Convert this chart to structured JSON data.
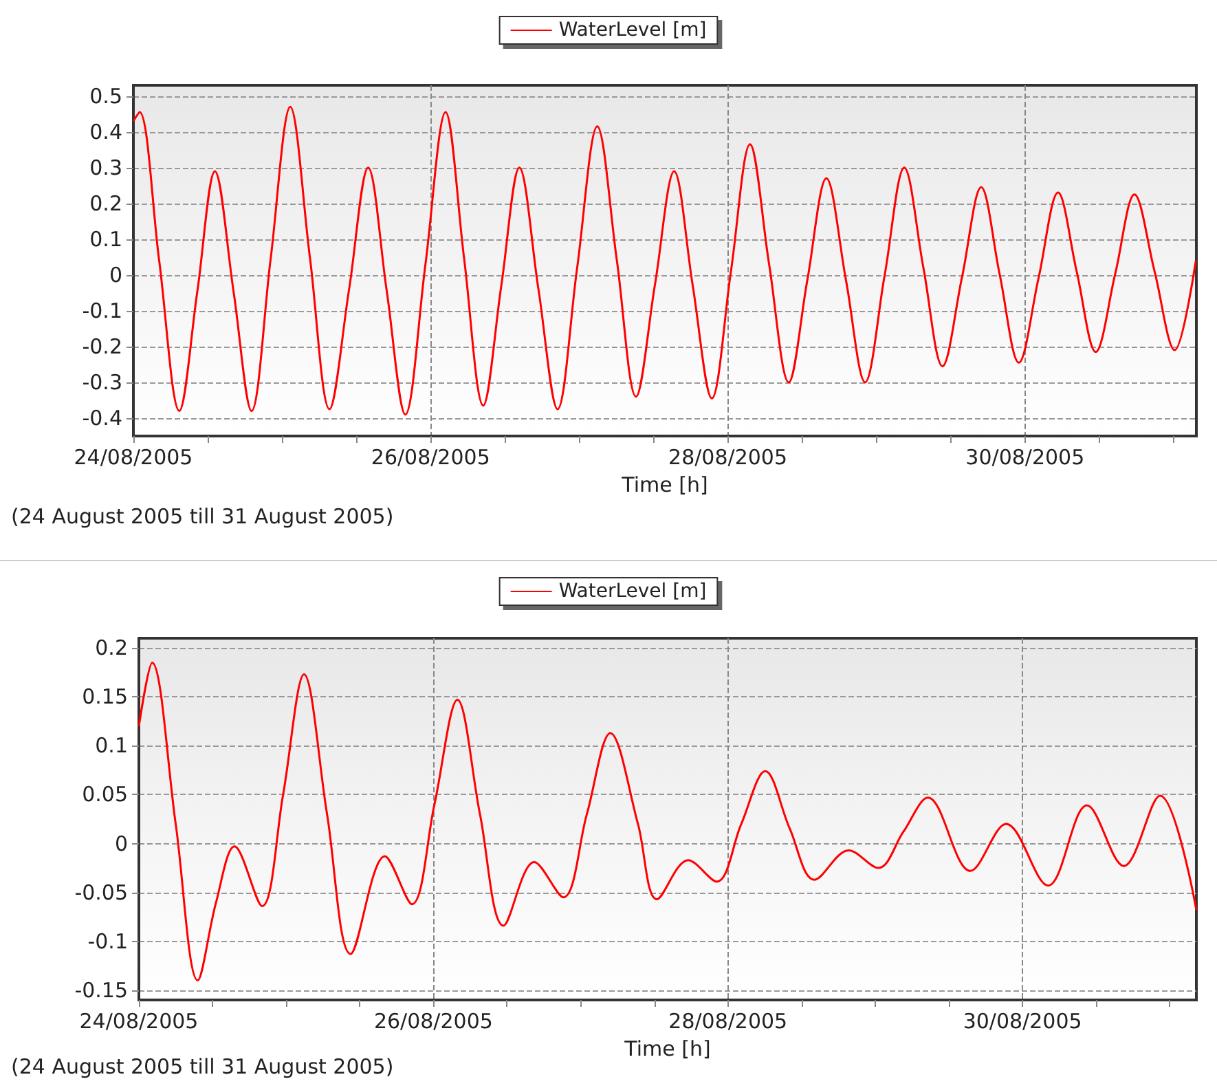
{
  "chart_data": [
    {
      "type": "line",
      "xlabel": "Time [h]",
      "annotations": [
        "(24 August 2005 till 31 August 2005)"
      ],
      "legend": "top",
      "grid": true,
      "marker": "none",
      "line_style": "solid",
      "xlim": [
        "2005-08-24T00:00",
        "2005-08-31T03:40"
      ],
      "xticks": [
        {
          "value": "2005-08-24T00:00",
          "label": "24/08/2005"
        },
        {
          "value": "2005-08-24T12:00",
          "label": null
        },
        {
          "value": "2005-08-25T00:00",
          "label": null
        },
        {
          "value": "2005-08-25T12:00",
          "label": null
        },
        {
          "value": "2005-08-26T00:00",
          "label": "26/08/2005"
        },
        {
          "value": "2005-08-26T12:00",
          "label": null
        },
        {
          "value": "2005-08-27T00:00",
          "label": null
        },
        {
          "value": "2005-08-27T12:00",
          "label": null
        },
        {
          "value": "2005-08-28T00:00",
          "label": "28/08/2005"
        },
        {
          "value": "2005-08-28T12:00",
          "label": null
        },
        {
          "value": "2005-08-29T00:00",
          "label": null
        },
        {
          "value": "2005-08-29T12:00",
          "label": null
        },
        {
          "value": "2005-08-30T00:00",
          "label": "30/08/2005"
        },
        {
          "value": "2005-08-30T12:00",
          "label": null
        },
        {
          "value": "2005-08-31T00:00",
          "label": null
        }
      ],
      "ylim": [
        -0.45,
        0.53
      ],
      "yticks": [
        -0.4,
        -0.3,
        -0.2,
        -0.1,
        0,
        0.1,
        0.2,
        0.3,
        0.4,
        0.5
      ],
      "series": [
        {
          "name": "WaterLevel [m]",
          "color": "#ff0000",
          "x": [
            "2005-08-24T00:00",
            "2005-08-24T01:00",
            "2005-08-24T04:10",
            "2005-08-24T07:25",
            "2005-08-24T10:20",
            "2005-08-24T13:10",
            "2005-08-24T16:10",
            "2005-08-24T19:05",
            "2005-08-24T22:10",
            "2005-08-25T01:20",
            "2005-08-25T04:30",
            "2005-08-25T07:40",
            "2005-08-25T10:50",
            "2005-08-25T13:55",
            "2005-08-25T16:55",
            "2005-08-25T19:55",
            "2005-08-25T23:10",
            "2005-08-26T02:25",
            "2005-08-26T05:25",
            "2005-08-26T08:30",
            "2005-08-26T11:25",
            "2005-08-26T14:20",
            "2005-08-26T17:25",
            "2005-08-26T20:30",
            "2005-08-26T23:40",
            "2005-08-27T02:55",
            "2005-08-27T06:05",
            "2005-08-27T09:10",
            "2005-08-27T12:15",
            "2005-08-27T15:20",
            "2005-08-27T18:20",
            "2005-08-27T21:25",
            "2005-08-28T00:30",
            "2005-08-28T03:35",
            "2005-08-28T06:40",
            "2005-08-28T09:50",
            "2005-08-28T12:50",
            "2005-08-28T15:55",
            "2005-08-28T19:05",
            "2005-08-28T22:10",
            "2005-08-29T01:20",
            "2005-08-29T04:30",
            "2005-08-29T07:35",
            "2005-08-29T10:40",
            "2005-08-29T13:50",
            "2005-08-29T16:55",
            "2005-08-29T19:55",
            "2005-08-29T23:00",
            "2005-08-30T02:10",
            "2005-08-30T05:20",
            "2005-08-30T08:20",
            "2005-08-30T11:25",
            "2005-08-30T14:35",
            "2005-08-30T17:40",
            "2005-08-30T20:55",
            "2005-08-31T00:10",
            "2005-08-31T03:35"
          ],
          "values": [
            0.43,
            0.455,
            0.04,
            -0.38,
            -0.045,
            0.29,
            -0.045,
            -0.38,
            0.045,
            0.47,
            0.05,
            -0.375,
            -0.04,
            0.3,
            -0.045,
            -0.39,
            0.03,
            0.455,
            0.045,
            -0.365,
            -0.03,
            0.3,
            -0.04,
            -0.375,
            0.02,
            0.415,
            0.04,
            -0.34,
            -0.025,
            0.29,
            -0.03,
            -0.345,
            0.01,
            0.365,
            0.03,
            -0.3,
            -0.015,
            0.27,
            -0.015,
            -0.3,
            0,
            0.3,
            0.02,
            -0.255,
            -0.005,
            0.245,
            0,
            -0.245,
            -0.01,
            0.23,
            0.01,
            -0.215,
            0.005,
            0.225,
            0.01,
            -0.21,
            0.04
          ]
        }
      ]
    },
    {
      "type": "line",
      "xlabel": "Time [h]",
      "annotations": [
        "(24 August 2005 till 31 August 2005)"
      ],
      "legend": "top",
      "grid": true,
      "marker": "none",
      "line_style": "solid",
      "xlim": [
        "2005-08-24T00:00",
        "2005-08-31T04:20"
      ],
      "xticks": [
        {
          "value": "2005-08-24T00:00",
          "label": "24/08/2005"
        },
        {
          "value": "2005-08-24T12:00",
          "label": null
        },
        {
          "value": "2005-08-25T00:00",
          "label": null
        },
        {
          "value": "2005-08-25T12:00",
          "label": null
        },
        {
          "value": "2005-08-26T00:00",
          "label": "26/08/2005"
        },
        {
          "value": "2005-08-26T12:00",
          "label": null
        },
        {
          "value": "2005-08-27T00:00",
          "label": null
        },
        {
          "value": "2005-08-27T12:00",
          "label": null
        },
        {
          "value": "2005-08-28T00:00",
          "label": "28/08/2005"
        },
        {
          "value": "2005-08-28T12:00",
          "label": null
        },
        {
          "value": "2005-08-29T00:00",
          "label": null
        },
        {
          "value": "2005-08-29T12:00",
          "label": null
        },
        {
          "value": "2005-08-30T00:00",
          "label": "30/08/2005"
        },
        {
          "value": "2005-08-30T12:00",
          "label": null
        },
        {
          "value": "2005-08-31T00:00",
          "label": null
        }
      ],
      "ylim": [
        -0.16,
        0.21
      ],
      "yticks": [
        -0.15,
        -0.1,
        -0.05,
        0,
        0.05,
        0.1,
        0.15,
        0.2
      ],
      "series": [
        {
          "name": "WaterLevel [m]",
          "color": "#ff0000",
          "x": [
            "2005-08-24T00:00",
            "2005-08-24T02:10",
            "2005-08-24T06:00",
            "2005-08-24T09:35",
            "2005-08-24T12:35",
            "2005-08-24T15:35",
            "2005-08-24T20:05",
            "2005-08-24T23:30",
            "2005-08-25T02:55",
            "2005-08-25T06:40",
            "2005-08-25T10:30",
            "2005-08-25T16:05",
            "2005-08-25T20:30",
            "2005-08-26T00:10",
            "2005-08-26T03:55",
            "2005-08-26T07:35",
            "2005-08-26T11:25",
            "2005-08-26T16:25",
            "2005-08-26T21:10",
            "2005-08-27T01:00",
            "2005-08-27T04:50",
            "2005-08-27T09:20",
            "2005-08-27T12:25",
            "2005-08-27T17:30",
            "2005-08-27T22:10",
            "2005-08-28T02:10",
            "2005-08-28T06:05",
            "2005-08-28T10:05",
            "2005-08-28T14:05",
            "2005-08-28T19:40",
            "2005-08-29T00:30",
            "2005-08-29T04:35",
            "2005-08-29T08:35",
            "2005-08-29T15:30",
            "2005-08-29T21:20",
            "2005-08-30T04:10",
            "2005-08-30T10:30",
            "2005-08-30T16:30",
            "2005-08-30T22:25",
            "2005-08-31T04:20"
          ],
          "values": [
            0.12,
            0.185,
            0.02,
            -0.14,
            -0.06,
            -0.003,
            -0.064,
            0.05,
            0.173,
            0.03,
            -0.113,
            -0.013,
            -0.062,
            0.04,
            0.147,
            0.03,
            -0.084,
            -0.019,
            -0.055,
            0.03,
            0.113,
            0.02,
            -0.057,
            -0.017,
            -0.039,
            0.02,
            0.074,
            0.015,
            -0.037,
            -0.007,
            -0.025,
            0.012,
            0.047,
            -0.028,
            0.02,
            -0.043,
            0.039,
            -0.023,
            0.049,
            -0.068
          ]
        }
      ]
    }
  ]
}
